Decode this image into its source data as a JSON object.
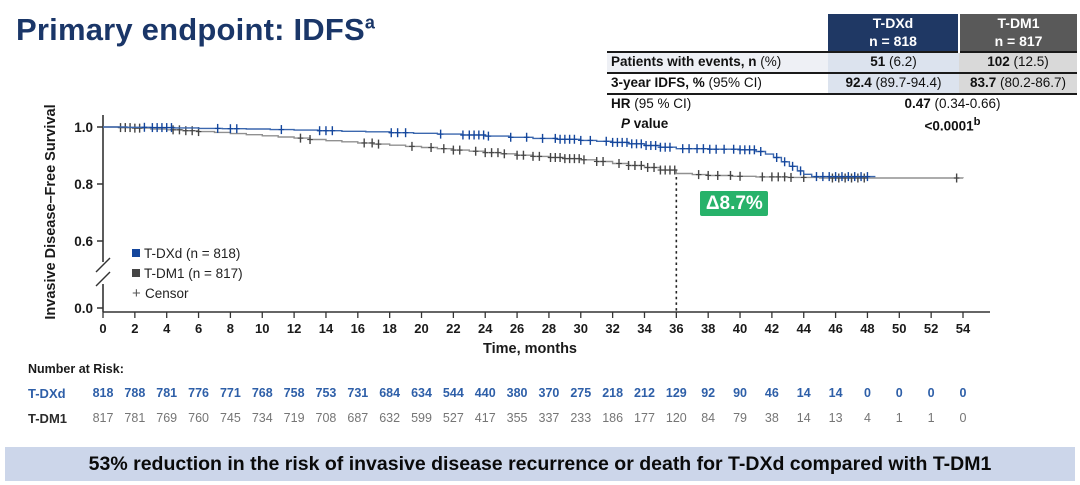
{
  "title": {
    "text": "Primary endpoint: IDFS",
    "superscript": "a"
  },
  "colors": {
    "title": "#1a3668",
    "header_tdxd_bg": "#1f3864",
    "header_tdm1_bg": "#595959",
    "cell_tdxd_bg": "#dce3ee",
    "cell_tdm1_bg": "#d9d9d9",
    "label_row1_bg": "#eef0f5",
    "label_row2_bg": "#ffffff",
    "banner_bg": "#ccd6ea",
    "badge_green": "#27b26a",
    "tdxd_line": "#3b67ae",
    "tdxd_censor": "#14469c",
    "tdm1_line": "#909090",
    "tdm1_censor": "#454545",
    "tdxd_text": "#2e5fa8",
    "tdm1_label_text": "#2b2b2b",
    "tdm1_num_text": "#757575",
    "axis": "#333333"
  },
  "summary_table": {
    "col_headers": [
      {
        "line1": "T-DXd",
        "line2": "n = 818"
      },
      {
        "line1": "T-DM1",
        "line2": "n = 817"
      }
    ],
    "rows": [
      {
        "label_bold": "Patients with events, n",
        "label_rest": " (%)",
        "tdxd_bold": "51",
        "tdxd_rest": " (6.2)",
        "tdm1_bold": "102",
        "tdm1_rest": " (12.5)"
      },
      {
        "label_bold": "3-year IDFS, %",
        "label_rest": " (95% CI)",
        "tdxd_bold": "92.4",
        "tdxd_rest": " (89.7-94.4)",
        "tdm1_bold": "83.7",
        "tdm1_rest": " (80.2-86.7)"
      }
    ],
    "hr_label_bold": "HR",
    "hr_label_rest": " (95 % CI)",
    "hr_value_bold": "0.47",
    "hr_value_rest": " (0.34-0.66)",
    "p_label_italic": "P",
    "p_label_rest": " value",
    "p_value": "<0.0001",
    "p_value_sup": "b"
  },
  "chart_data": {
    "type": "line",
    "subtype": "kaplan-meier-step",
    "xlabel": "Time, months",
    "ylabel": "Invasive Disease–Free Survival",
    "x_ticks": [
      0,
      2,
      4,
      6,
      8,
      10,
      12,
      14,
      16,
      18,
      20,
      22,
      24,
      26,
      28,
      30,
      32,
      34,
      36,
      38,
      40,
      42,
      44,
      46,
      48,
      50,
      52,
      54
    ],
    "y_ticks": [
      1.0,
      0.8,
      0.6,
      0.0
    ],
    "y_axis_break": true,
    "xlim": [
      0,
      54
    ],
    "reference_line": {
      "x_month": 36,
      "style": "dashed"
    },
    "annotation": {
      "text": "Δ8.7%"
    },
    "legend": [
      {
        "label": "T-DXd (n = 818)",
        "marker": "square"
      },
      {
        "label": "T-DM1 (n = 817)",
        "marker": "square"
      },
      {
        "label": "Censor",
        "marker": "plus",
        "marker_glyph": "+"
      }
    ],
    "series": [
      {
        "name": "T-DXd",
        "points": [
          [
            0,
            1.0
          ],
          [
            1.5,
            0.999
          ],
          [
            3,
            0.998
          ],
          [
            4.5,
            0.997
          ],
          [
            6,
            0.995
          ],
          [
            7.5,
            0.994
          ],
          [
            9,
            0.993
          ],
          [
            10.5,
            0.991
          ],
          [
            12,
            0.989
          ],
          [
            13.5,
            0.987
          ],
          [
            15,
            0.985
          ],
          [
            16.5,
            0.983
          ],
          [
            18,
            0.98
          ],
          [
            19.5,
            0.978
          ],
          [
            21,
            0.975
          ],
          [
            22.5,
            0.972
          ],
          [
            24,
            0.968
          ],
          [
            25.5,
            0.964
          ],
          [
            27,
            0.96
          ],
          [
            28.5,
            0.957
          ],
          [
            30,
            0.953
          ],
          [
            31,
            0.95
          ],
          [
            32,
            0.946
          ],
          [
            33,
            0.941
          ],
          [
            34,
            0.935
          ],
          [
            35,
            0.929
          ],
          [
            36,
            0.924
          ],
          [
            38,
            0.922
          ],
          [
            40,
            0.92
          ],
          [
            41,
            0.914
          ],
          [
            41.6,
            0.905
          ],
          [
            42.1,
            0.893
          ],
          [
            42.6,
            0.878
          ],
          [
            43.1,
            0.862
          ],
          [
            43.6,
            0.846
          ],
          [
            44,
            0.834
          ],
          [
            44.5,
            0.826
          ],
          [
            48.5,
            0.826
          ]
        ],
        "censors": [
          2.6,
          3.1,
          3.4,
          3.7,
          4.0,
          4.3,
          7.2,
          8.0,
          8.4,
          11.2,
          13.6,
          14.0,
          14.4,
          18.1,
          18.5,
          19.0,
          21.2,
          22.6,
          23.0,
          23.3,
          23.6,
          23.9,
          24.2,
          25.6,
          26.6,
          27.6,
          28.4,
          28.7,
          29.0,
          29.3,
          29.6,
          30.0,
          30.6,
          31.6,
          32.0,
          32.3,
          32.6,
          32.9,
          33.2,
          33.5,
          33.8,
          34.1,
          34.4,
          34.7,
          35.0,
          35.3,
          35.6,
          36.4,
          36.8,
          37.3,
          37.7,
          38.1,
          38.5,
          39.0,
          39.6,
          40.0,
          40.3,
          40.6,
          40.9,
          41.3,
          42.3,
          42.8,
          43.3,
          43.8,
          44.8,
          45.2,
          45.6,
          46.0,
          46.4,
          46.8,
          47.2,
          47.6,
          48.0
        ]
      },
      {
        "name": "T-DM1",
        "points": [
          [
            0,
            1.0
          ],
          [
            1,
            0.998
          ],
          [
            2,
            0.996
          ],
          [
            3,
            0.993
          ],
          [
            4,
            0.99
          ],
          [
            5,
            0.987
          ],
          [
            6,
            0.984
          ],
          [
            7,
            0.981
          ],
          [
            8,
            0.977
          ],
          [
            9,
            0.973
          ],
          [
            10,
            0.969
          ],
          [
            11,
            0.965
          ],
          [
            12,
            0.961
          ],
          [
            13,
            0.956
          ],
          [
            14,
            0.952
          ],
          [
            15,
            0.948
          ],
          [
            16,
            0.944
          ],
          [
            17,
            0.94
          ],
          [
            18,
            0.936
          ],
          [
            19,
            0.932
          ],
          [
            20,
            0.928
          ],
          [
            21,
            0.924
          ],
          [
            22,
            0.919
          ],
          [
            23,
            0.915
          ],
          [
            24,
            0.91
          ],
          [
            25,
            0.906
          ],
          [
            26,
            0.901
          ],
          [
            27,
            0.897
          ],
          [
            28,
            0.893
          ],
          [
            29,
            0.889
          ],
          [
            30,
            0.885
          ],
          [
            31,
            0.879
          ],
          [
            32,
            0.872
          ],
          [
            33,
            0.865
          ],
          [
            34,
            0.858
          ],
          [
            35,
            0.849
          ],
          [
            36,
            0.837
          ],
          [
            37,
            0.833
          ],
          [
            38,
            0.83
          ],
          [
            39.5,
            0.827
          ],
          [
            41,
            0.825
          ],
          [
            43,
            0.823
          ],
          [
            45,
            0.821
          ],
          [
            54,
            0.82
          ]
        ],
        "censors": [
          1.1,
          1.4,
          1.7,
          2.0,
          2.3,
          4.4,
          4.8,
          5.2,
          5.6,
          6.0,
          12.4,
          13.0,
          16.4,
          16.9,
          17.3,
          19.4,
          20.6,
          21.4,
          22.0,
          22.4,
          23.4,
          24.0,
          24.4,
          24.8,
          25.2,
          26.0,
          26.4,
          27.0,
          27.4,
          28.1,
          28.4,
          28.7,
          29.0,
          29.3,
          29.6,
          29.9,
          30.2,
          31.0,
          31.4,
          32.4,
          33.0,
          33.4,
          33.8,
          34.2,
          34.6,
          35.0,
          35.3,
          35.6,
          35.9,
          37.4,
          38.0,
          38.6,
          39.4,
          40.0,
          41.4,
          42.0,
          42.4,
          42.8,
          43.2,
          44.0,
          45.8,
          46.2,
          46.6,
          47.0,
          47.4,
          47.8,
          53.6
        ]
      }
    ]
  },
  "number_at_risk": {
    "title": "Number at Risk:",
    "rows": [
      {
        "label": "T-DXd",
        "values": [
          818,
          788,
          781,
          776,
          771,
          768,
          758,
          753,
          731,
          684,
          634,
          544,
          440,
          380,
          370,
          275,
          218,
          212,
          129,
          92,
          90,
          46,
          14,
          14,
          0,
          0,
          0,
          0
        ]
      },
      {
        "label": "T-DM1",
        "values": [
          817,
          781,
          769,
          760,
          745,
          734,
          719,
          708,
          687,
          632,
          599,
          527,
          417,
          355,
          337,
          233,
          186,
          177,
          120,
          84,
          79,
          38,
          14,
          13,
          4,
          1,
          1,
          0
        ]
      }
    ]
  },
  "banner": {
    "text": "53% reduction in the risk of invasive disease recurrence or death for T-DXd compared with T-DM1"
  }
}
